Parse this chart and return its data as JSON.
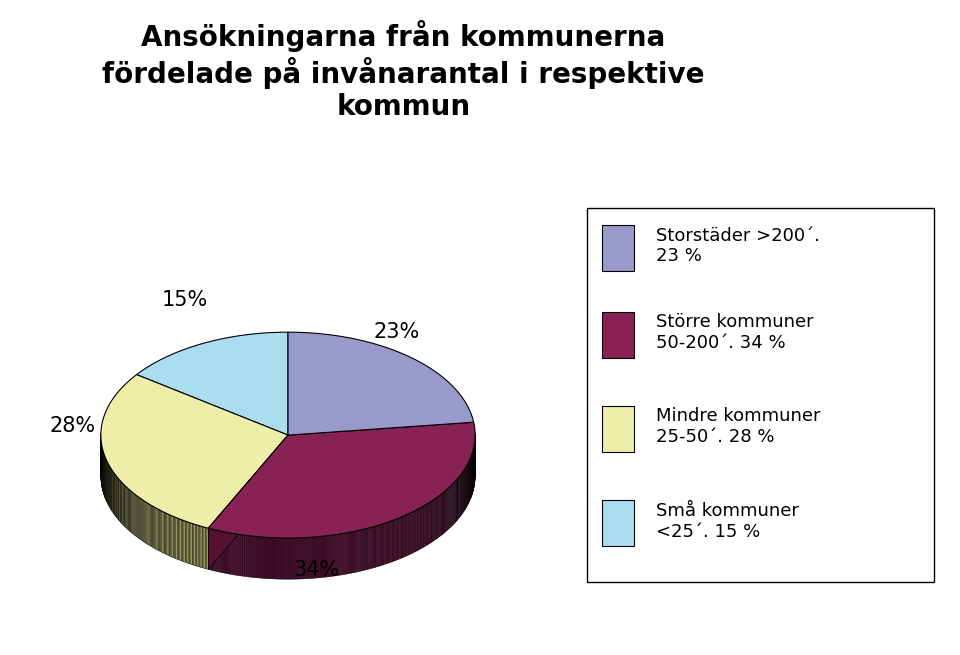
{
  "title": "Ansökningarna från kommunerna\nfördelade på invånarantal i respektive\nkommun",
  "slices": [
    23,
    34,
    28,
    15
  ],
  "pct_labels": [
    "23%",
    "34%",
    "28%",
    "15%"
  ],
  "colors": [
    "#9999cc",
    "#882255",
    "#eeeeaa",
    "#aaddee"
  ],
  "side_colors": [
    "#666699",
    "#551133",
    "#aaaa66",
    "#66aabb"
  ],
  "legend_labels": [
    "Storstäder >200´.\n23 %",
    "Större kommuner\n50-200´. 34 %",
    "Mindre kommuner\n25-50´. 28 %",
    "Små kommuner\n<25´. 15 %"
  ],
  "legend_colors": [
    "#9999cc",
    "#882255",
    "#eeeeaa",
    "#aaddee"
  ],
  "background_color": "#ffffff",
  "title_fontsize": 20,
  "label_fontsize": 15,
  "legend_fontsize": 13
}
